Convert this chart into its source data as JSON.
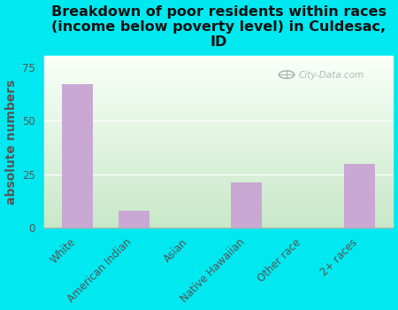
{
  "title": "Breakdown of poor residents within races\n(income below poverty level) in Culdesac,\nID",
  "categories": [
    "White",
    "American Indian",
    "Asian",
    "Native Hawaiian",
    "Other race",
    "2+ races"
  ],
  "values": [
    67,
    8,
    0,
    21,
    0,
    30
  ],
  "bar_color": "#c9a8d4",
  "ylabel": "absolute numbers",
  "ylim": [
    0,
    80
  ],
  "yticks": [
    0,
    25,
    50,
    75
  ],
  "background_outer": "#00e8f0",
  "background_inner_topleft": "#d8eed8",
  "background_inner_topright": "#f8fff8",
  "background_inner_bottomleft": "#c8e8c8",
  "background_inner_bottomright": "#eefaee",
  "title_fontsize": 11.5,
  "ylabel_fontsize": 10,
  "ylabel_color": "#555555",
  "tick_color": "#555555",
  "grid_color": "#dddddd",
  "watermark": "City-Data.com"
}
